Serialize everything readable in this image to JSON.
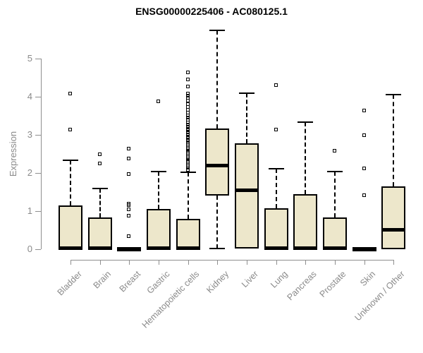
{
  "chart_data": {
    "type": "boxplot",
    "title": "ENSG00000225406 - AC080125.1",
    "xlabel": "",
    "ylabel": "Expression",
    "ylim": [
      0,
      5.75
    ],
    "yticks": [
      0,
      1,
      2,
      3,
      4,
      5
    ],
    "grid": false,
    "legend": "none",
    "box_fill_color": "#EDE7CB",
    "box_border_color": "#000000",
    "axis_color": "#8F8F8F",
    "label_color": "#8A8A8A",
    "categories": [
      "Bladder",
      "Brain",
      "Breast",
      "Gastric",
      "Hematopoietic cells",
      "Kidney",
      "Liver",
      "Lung",
      "Pancreas",
      "Prostate",
      "Skin",
      "Unknown / Other"
    ],
    "series": [
      {
        "name": "Bladder",
        "q1": 0,
        "median": 0.04,
        "q3": 1.15,
        "whisker_low": 0,
        "whisker_high": 2.33,
        "outliers": [
          3.13,
          4.07
        ]
      },
      {
        "name": "Brain",
        "q1": 0,
        "median": 0.04,
        "q3": 0.83,
        "whisker_low": 0,
        "whisker_high": 1.6,
        "outliers": [
          2.24,
          2.47
        ]
      },
      {
        "name": "Breast",
        "q1": 0,
        "median": 0.02,
        "q3": 0,
        "whisker_low": 0,
        "whisker_high": 0,
        "outliers": [
          0.33,
          0.87,
          1.04,
          1.15,
          1.18,
          1.97,
          2.37,
          2.63
        ]
      },
      {
        "name": "Gastric",
        "q1": 0,
        "median": 0.04,
        "q3": 1.05,
        "whisker_low": 0,
        "whisker_high": 2.03,
        "outliers": [
          3.86
        ]
      },
      {
        "name": "Hematopoietic cells",
        "q1": 0,
        "median": 0.04,
        "q3": 0.8,
        "whisker_low": 0,
        "whisker_high": 2.02,
        "outliers": [
          2.08,
          2.12,
          2.16,
          2.2,
          2.24,
          2.28,
          2.32,
          2.36,
          2.4,
          2.44,
          2.48,
          2.52,
          2.56,
          2.6,
          2.64,
          2.68,
          2.72,
          2.76,
          2.8,
          2.85,
          2.9,
          2.95,
          3.0,
          3.05,
          3.1,
          3.15,
          3.2,
          3.26,
          3.32,
          3.38,
          3.44,
          3.5,
          3.57,
          3.64,
          3.72,
          3.8,
          3.88,
          3.96,
          4.02,
          4.07,
          4.25,
          4.44,
          4.62
        ]
      },
      {
        "name": "Kidney",
        "q1": 1.41,
        "median": 2.21,
        "q3": 3.17,
        "whisker_low": 0.02,
        "whisker_high": 5.73,
        "outliers": []
      },
      {
        "name": "Liver",
        "q1": 0.02,
        "median": 1.55,
        "q3": 2.77,
        "whisker_low": 0.02,
        "whisker_high": 4.08,
        "outliers": []
      },
      {
        "name": "Lung",
        "q1": 0,
        "median": 0.04,
        "q3": 1.07,
        "whisker_low": 0,
        "whisker_high": 2.1,
        "outliers": [
          3.12,
          4.3
        ]
      },
      {
        "name": "Pancreas",
        "q1": 0,
        "median": 0.04,
        "q3": 1.44,
        "whisker_low": 0,
        "whisker_high": 3.33,
        "outliers": []
      },
      {
        "name": "Prostate",
        "q1": 0,
        "median": 0.04,
        "q3": 0.83,
        "whisker_low": 0,
        "whisker_high": 2.04,
        "outliers": [
          2.58
        ]
      },
      {
        "name": "Skin",
        "q1": 0,
        "median": 0.02,
        "q3": 0,
        "whisker_low": 0,
        "whisker_high": 0,
        "outliers": [
          1.41,
          2.1,
          2.97,
          3.63
        ]
      },
      {
        "name": "Unknown / Other",
        "q1": 0,
        "median": 0.51,
        "q3": 1.64,
        "whisker_low": 0,
        "whisker_high": 4.06,
        "outliers": []
      }
    ]
  }
}
